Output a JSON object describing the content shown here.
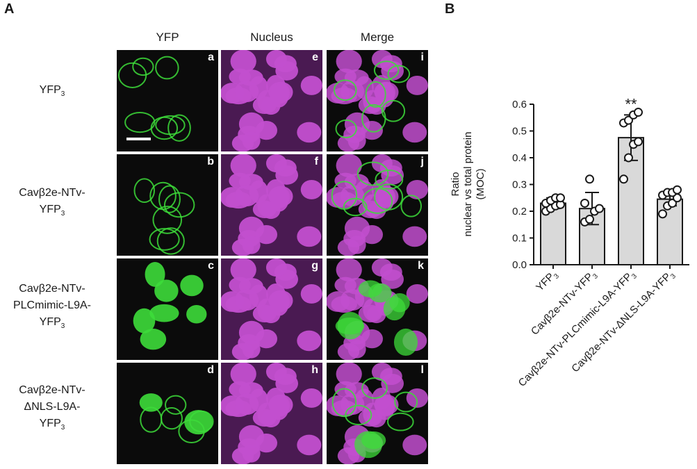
{
  "panel_a": {
    "letter": "A",
    "columns": [
      "YFP",
      "Nucleus",
      "Merge"
    ],
    "rows": [
      {
        "label_lines": [
          "YFP3"
        ]
      },
      {
        "label_lines": [
          "Cavβ2e-NTv-",
          "YFP3"
        ]
      },
      {
        "label_lines": [
          "Cavβ2e-NTv-",
          "PLCmimic-L9A-",
          "YFP3"
        ]
      },
      {
        "label_lines": [
          "Cavβ2e-NTv-",
          "ΔNLS-L9A-",
          "YFP3"
        ]
      }
    ],
    "tile_letters": [
      [
        "a",
        "e",
        "i"
      ],
      [
        "b",
        "f",
        "j"
      ],
      [
        "c",
        "g",
        "k"
      ],
      [
        "d",
        "h",
        "l"
      ]
    ],
    "colors": {
      "yfp": "#3ddc3a",
      "nucleus": "#c24fcf",
      "background": "#0b0b0b"
    }
  },
  "panel_b": {
    "letter": "B",
    "significance": "**",
    "chart_data": {
      "type": "bar",
      "categories": [
        "YFP3",
        "Cavβ2e-NTv-YFP3",
        "Cavβ2e-NTv-PLCmimic-L9A-YFP3",
        "Cavβ2e-NTv-ΔNLS-L9A-YFP3"
      ],
      "values": [
        0.23,
        0.21,
        0.475,
        0.245
      ],
      "errors": [
        0.02,
        0.06,
        0.085,
        0.025
      ],
      "points": [
        [
          0.2,
          0.21,
          0.22,
          0.225,
          0.23,
          0.24,
          0.25,
          0.25
        ],
        [
          0.16,
          0.17,
          0.2,
          0.21,
          0.23,
          0.32
        ],
        [
          0.32,
          0.4,
          0.45,
          0.46,
          0.53,
          0.54,
          0.56,
          0.57
        ],
        [
          0.19,
          0.22,
          0.23,
          0.25,
          0.26,
          0.27,
          0.27,
          0.28
        ]
      ],
      "ylabel_lines": [
        "Ratio",
        "nuclear vs total protein",
        "(MOC)"
      ],
      "ylim": [
        0,
        0.6
      ],
      "yticks": [
        "0.0",
        "0.1",
        "0.2",
        "0.3",
        "0.4",
        "0.5",
        "0.6"
      ],
      "bar_color": "#d9d9d9",
      "grid": false
    }
  }
}
